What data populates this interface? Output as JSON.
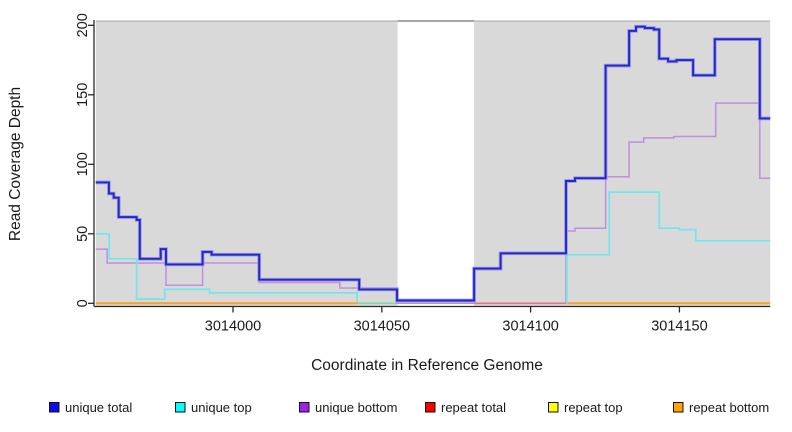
{
  "chart_data": {
    "type": "line",
    "variant": "step-after",
    "xlabel": "Coordinate in Reference Genome",
    "ylabel": "Read Coverage Depth",
    "xlim": [
      3013953.9,
      3014180.5
    ],
    "ylim": [
      -2.3,
      203.1
    ],
    "x_ticks": [
      3014000,
      3014050,
      3014100,
      3014150
    ],
    "y_ticks": [
      0,
      50,
      100,
      150,
      200
    ],
    "grid": "off",
    "panel_bg": "#d9d9d9",
    "panel_top_edge": "#a8a8a8",
    "axis_color": "#2b2b2b",
    "text_color": "#1a1a1a",
    "gap_region": {
      "from": 3014055.3,
      "to": 3014081.0,
      "fill": "#ffffff",
      "edge": "#8a8a8a"
    },
    "legend_position": "bottom",
    "series": [
      {
        "name": "unique total",
        "legend_fill": "#0b0bee",
        "line_color": "#2525c8",
        "halo": "#9a9ae8",
        "width": 1.9,
        "points": [
          [
            3013953.9,
            87
          ],
          [
            3013958.3,
            79
          ],
          [
            3013959.9,
            76
          ],
          [
            3013961.6,
            62
          ],
          [
            3013967.6,
            60
          ],
          [
            3013968.7,
            32
          ],
          [
            3013975.7,
            39
          ],
          [
            3013977.5,
            28
          ],
          [
            3013989.8,
            37
          ],
          [
            3013992.8,
            35
          ],
          [
            3014008.8,
            17
          ],
          [
            3014042.4,
            10
          ],
          [
            3014055.1,
            2
          ],
          [
            3014081.0,
            25
          ],
          [
            3014089.9,
            36
          ],
          [
            3014111.9,
            88
          ],
          [
            3014114.9,
            90
          ],
          [
            3014125.2,
            171
          ],
          [
            3014133.1,
            196
          ],
          [
            3014135.4,
            199
          ],
          [
            3014138.4,
            198
          ],
          [
            3014141.4,
            197
          ],
          [
            3014143.2,
            176
          ],
          [
            3014146.2,
            174
          ],
          [
            3014149.0,
            175
          ],
          [
            3014154.6,
            164
          ],
          [
            3014161.9,
            190
          ],
          [
            3014177.0,
            133
          ],
          [
            3014180.5,
            133
          ]
        ]
      },
      {
        "name": "unique top",
        "legend_fill": "#00ffff",
        "line_color": "#70e7ea",
        "width": 1.7,
        "points": [
          [
            3013953.9,
            50
          ],
          [
            3013958.4,
            32
          ],
          [
            3013967.6,
            3
          ],
          [
            3013977.1,
            10
          ],
          [
            3013992.1,
            7.5
          ],
          [
            3014041.7,
            1
          ],
          null,
          [
            3014111.9,
            0
          ],
          [
            3014112.2,
            35
          ],
          [
            3014126.4,
            80
          ],
          [
            3014143.2,
            54
          ],
          [
            3014150.0,
            53
          ],
          [
            3014155.5,
            45
          ],
          [
            3014180.5,
            45
          ]
        ]
      },
      {
        "name": "unique bottom",
        "legend_fill": "#a020f0",
        "line_color": "#bd8fdd",
        "width": 1.5,
        "points": [
          [
            3013953.9,
            39
          ],
          [
            3013957.7,
            29
          ],
          [
            3013977.5,
            13
          ],
          [
            3013989.8,
            29
          ],
          [
            3014008.8,
            15
          ],
          [
            3014035.9,
            11
          ],
          [
            3014055.1,
            0
          ],
          [
            3014111.9,
            52
          ],
          [
            3014114.9,
            54
          ],
          [
            3014125.2,
            91
          ],
          [
            3014133.1,
            116
          ],
          [
            3014138.0,
            119
          ],
          [
            3014148.1,
            120
          ],
          [
            3014162.2,
            144
          ],
          [
            3014177.0,
            90
          ],
          [
            3014180.5,
            90
          ]
        ]
      },
      {
        "name": "repeat total",
        "legend_fill": "#ff0000",
        "line_color": "#e4748f",
        "width": 1.7,
        "render": "baseline",
        "points": [
          [
            3013953.9,
            0
          ],
          [
            3014180.5,
            0
          ]
        ]
      },
      {
        "name": "repeat top",
        "legend_fill": "#ffff00",
        "line_color": "#ffff00",
        "width": 1.7,
        "render": "baseline",
        "points": [
          [
            3013953.9,
            0
          ],
          [
            3014180.5,
            0
          ]
        ]
      },
      {
        "name": "repeat bottom",
        "legend_fill": "#ffa500",
        "line_color": "#ff9d26",
        "width": 2,
        "render": "baseline",
        "points": [
          [
            3013953.9,
            0
          ],
          [
            3014180.5,
            0
          ]
        ]
      }
    ],
    "baseline_segments": [
      {
        "from": 3013953.9,
        "to": 3014042.0,
        "color": "#ff9d26",
        "width": 2
      },
      {
        "from": 3014042.0,
        "to": 3014055.3,
        "color": "#7cd9a2",
        "width": 1.7
      },
      {
        "from": 3014081.0,
        "to": 3014111.9,
        "color": "#e4748f",
        "width": 1.7
      },
      {
        "from": 3014111.9,
        "to": 3014180.5,
        "color": "#ff9d26",
        "width": 2
      }
    ]
  },
  "legend": {
    "items": [
      {
        "label": "unique total",
        "fill": "#0b0bee"
      },
      {
        "label": "unique top",
        "fill": "#00ffff"
      },
      {
        "label": "unique bottom",
        "fill": "#a020f0"
      },
      {
        "label": "repeat total",
        "fill": "#ff0000"
      },
      {
        "label": "repeat top",
        "fill": "#ffff00"
      },
      {
        "label": "repeat bottom",
        "fill": "#ffa500"
      }
    ]
  }
}
